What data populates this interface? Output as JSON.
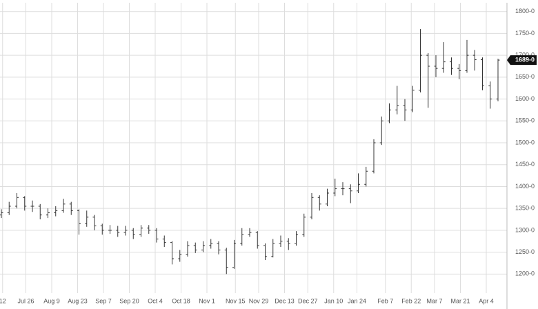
{
  "chart_data": {
    "type": "ohlc",
    "x": [
      0,
      3,
      6,
      9,
      12,
      15,
      18,
      21,
      24,
      27,
      30,
      33,
      36,
      39,
      42,
      45,
      48,
      51,
      54,
      57,
      60,
      63,
      66,
      69,
      72,
      75,
      78,
      81,
      84,
      87,
      90,
      93,
      96,
      99,
      102,
      105,
      108,
      111,
      114,
      117,
      120,
      123,
      126,
      129,
      132,
      135,
      138,
      141,
      144,
      147,
      150,
      153,
      156,
      159,
      162,
      165,
      168,
      171,
      174,
      177,
      180,
      183,
      186,
      189,
      192
    ],
    "open": [
      1335,
      1340,
      1355,
      1375,
      1355,
      1355,
      1335,
      1340,
      1345,
      1360,
      1345,
      1315,
      1330,
      1310,
      1300,
      1300,
      1295,
      1300,
      1290,
      1305,
      1300,
      1280,
      1272,
      1235,
      1245,
      1265,
      1255,
      1265,
      1270,
      1255,
      1215,
      1270,
      1290,
      1295,
      1265,
      1240,
      1270,
      1275,
      1270,
      1290,
      1330,
      1375,
      1360,
      1385,
      1395,
      1395,
      1390,
      1405,
      1435,
      1500,
      1550,
      1575,
      1585,
      1575,
      1620,
      1700,
      1675,
      1670,
      1685,
      1670,
      1665,
      1700,
      1690,
      1630,
      1600
    ],
    "high": [
      1348,
      1365,
      1385,
      1378,
      1368,
      1360,
      1350,
      1355,
      1372,
      1365,
      1348,
      1345,
      1335,
      1315,
      1312,
      1310,
      1310,
      1305,
      1312,
      1312,
      1305,
      1288,
      1275,
      1255,
      1275,
      1272,
      1275,
      1280,
      1275,
      1260,
      1278,
      1305,
      1305,
      1298,
      1270,
      1280,
      1288,
      1282,
      1298,
      1338,
      1385,
      1380,
      1395,
      1418,
      1410,
      1405,
      1430,
      1445,
      1508,
      1560,
      1590,
      1630,
      1600,
      1630,
      1760,
      1705,
      1700,
      1730,
      1695,
      1680,
      1735,
      1712,
      1695,
      1640,
      1692
    ],
    "low": [
      1328,
      1335,
      1350,
      1345,
      1342,
      1325,
      1328,
      1332,
      1340,
      1335,
      1290,
      1308,
      1300,
      1290,
      1292,
      1285,
      1288,
      1280,
      1285,
      1292,
      1272,
      1262,
      1222,
      1228,
      1240,
      1248,
      1250,
      1258,
      1245,
      1200,
      1212,
      1265,
      1285,
      1258,
      1232,
      1238,
      1262,
      1255,
      1265,
      1285,
      1325,
      1345,
      1355,
      1378,
      1380,
      1362,
      1385,
      1400,
      1430,
      1495,
      1545,
      1565,
      1550,
      1570,
      1615,
      1580,
      1650,
      1660,
      1655,
      1645,
      1660,
      1665,
      1620,
      1578,
      1595
    ],
    "close": [
      1340,
      1355,
      1375,
      1355,
      1355,
      1335,
      1340,
      1345,
      1360,
      1345,
      1315,
      1330,
      1310,
      1300,
      1300,
      1295,
      1300,
      1290,
      1305,
      1300,
      1280,
      1272,
      1235,
      1245,
      1265,
      1255,
      1265,
      1270,
      1255,
      1215,
      1270,
      1290,
      1295,
      1265,
      1240,
      1270,
      1275,
      1270,
      1290,
      1330,
      1375,
      1360,
      1385,
      1395,
      1395,
      1390,
      1405,
      1435,
      1500,
      1550,
      1575,
      1585,
      1575,
      1620,
      1700,
      1675,
      1670,
      1685,
      1670,
      1665,
      1700,
      1690,
      1630,
      1600,
      1689
    ],
    "color": "#333333",
    "xlim": [
      0,
      196
    ],
    "xticks": [
      {
        "value": 1,
        "label": "12"
      },
      {
        "value": 10,
        "label": "Jul 26"
      },
      {
        "value": 20,
        "label": "Aug 9"
      },
      {
        "value": 30,
        "label": "Aug 23"
      },
      {
        "value": 40,
        "label": "Sep 7"
      },
      {
        "value": 50,
        "label": "Sep 20"
      },
      {
        "value": 60,
        "label": "Oct 4"
      },
      {
        "value": 70,
        "label": "Oct 18"
      },
      {
        "value": 80,
        "label": "Nov 1"
      },
      {
        "value": 91,
        "label": "Nov 15"
      },
      {
        "value": 100,
        "label": "Nov 29"
      },
      {
        "value": 110,
        "label": "Dec 13"
      },
      {
        "value": 119,
        "label": "Dec 27"
      },
      {
        "value": 129,
        "label": "Jan 10"
      },
      {
        "value": 138,
        "label": "Jan 24"
      },
      {
        "value": 149,
        "label": "Feb 7"
      },
      {
        "value": 159,
        "label": "Feb 22"
      },
      {
        "value": 168,
        "label": "Mar 7"
      },
      {
        "value": 178,
        "label": "Mar 21"
      },
      {
        "value": 188,
        "label": "Apr 4"
      }
    ],
    "ylim": [
      1180,
      1820
    ],
    "yticks": [
      {
        "value": 1200,
        "label": "1200-0"
      },
      {
        "value": 1250,
        "label": "1250-0"
      },
      {
        "value": 1300,
        "label": "1300-0"
      },
      {
        "value": 1350,
        "label": "1350-0"
      },
      {
        "value": 1400,
        "label": "1400-0"
      },
      {
        "value": 1450,
        "label": "1450-0"
      },
      {
        "value": 1500,
        "label": "1500-0"
      },
      {
        "value": 1550,
        "label": "1550-0"
      },
      {
        "value": 1600,
        "label": "1600-0"
      },
      {
        "value": 1650,
        "label": "1650-0"
      },
      {
        "value": 1700,
        "label": "1700-0"
      },
      {
        "value": 1750,
        "label": "1750-0"
      },
      {
        "value": 1800,
        "label": "1800-0"
      }
    ],
    "last_price": {
      "value": 1689,
      "label": "1689-0"
    },
    "grid": true
  }
}
